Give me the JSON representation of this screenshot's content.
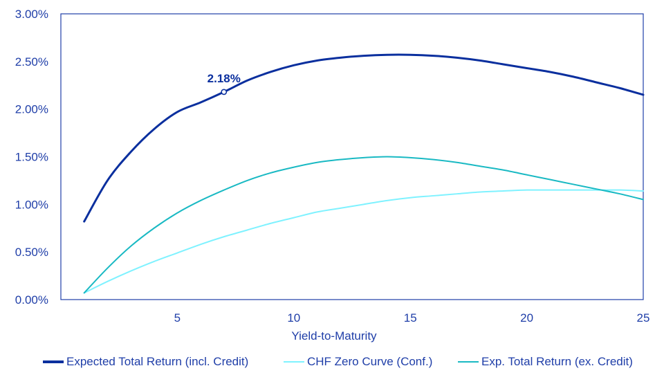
{
  "colors": {
    "axis_text": "#1f3ea8",
    "frame": "#1f3ea8",
    "expected_total": "#0a2f9e",
    "chf_zero": "#7ff2ff",
    "exp_ex_credit": "#19b9c3",
    "annotation": "#0a2f9e"
  },
  "chart_data": {
    "type": "line",
    "title": "",
    "xlabel": "Yield-to-Maturity",
    "ylabel": "",
    "xlim": [
      0,
      25
    ],
    "ylim": [
      0,
      3.0
    ],
    "x_ticks": [
      5,
      10,
      15,
      20,
      25
    ],
    "x_tick_labels": [
      "5",
      "10",
      "15",
      "20",
      "25"
    ],
    "y_ticks": [
      0,
      0.5,
      1.0,
      1.5,
      2.0,
      2.5,
      3.0
    ],
    "y_tick_labels": [
      "0.00%",
      "0.50%",
      "1.00%",
      "1.50%",
      "2.00%",
      "2.50%",
      "3.00%"
    ],
    "grid": false,
    "legend_position": "bottom",
    "series": [
      {
        "name": "Expected Total Return (incl. Credit)",
        "color_key": "expected_total",
        "width": 3,
        "x": [
          1,
          2,
          3,
          4,
          5,
          6,
          7,
          8,
          9,
          10,
          11,
          12,
          13,
          14,
          15,
          16,
          17,
          18,
          19,
          20,
          21,
          22,
          23,
          24,
          25
        ],
        "values": [
          0.82,
          1.25,
          1.55,
          1.79,
          1.97,
          2.07,
          2.18,
          2.3,
          2.39,
          2.46,
          2.51,
          2.54,
          2.56,
          2.57,
          2.57,
          2.56,
          2.54,
          2.51,
          2.47,
          2.43,
          2.39,
          2.34,
          2.28,
          2.22,
          2.15
        ]
      },
      {
        "name": "CHF Zero Curve (Conf.)",
        "color_key": "chf_zero",
        "width": 2,
        "x": [
          1,
          2,
          3,
          4,
          5,
          6,
          7,
          8,
          9,
          10,
          11,
          12,
          13,
          14,
          15,
          16,
          17,
          18,
          19,
          20,
          21,
          22,
          23,
          24,
          25
        ],
        "values": [
          0.07,
          0.19,
          0.3,
          0.4,
          0.49,
          0.58,
          0.66,
          0.73,
          0.8,
          0.86,
          0.92,
          0.96,
          1.0,
          1.04,
          1.07,
          1.09,
          1.11,
          1.13,
          1.14,
          1.15,
          1.15,
          1.15,
          1.15,
          1.15,
          1.14
        ]
      },
      {
        "name": "Exp. Total Return (ex. Credit)",
        "color_key": "exp_ex_credit",
        "width": 2,
        "x": [
          1,
          2,
          3,
          4,
          5,
          6,
          7,
          8,
          9,
          10,
          11,
          12,
          13,
          14,
          15,
          16,
          17,
          18,
          19,
          20,
          21,
          22,
          23,
          24,
          25
        ],
        "values": [
          0.07,
          0.33,
          0.56,
          0.75,
          0.91,
          1.04,
          1.15,
          1.25,
          1.33,
          1.39,
          1.44,
          1.47,
          1.49,
          1.5,
          1.49,
          1.47,
          1.44,
          1.4,
          1.36,
          1.31,
          1.26,
          1.21,
          1.16,
          1.11,
          1.05
        ]
      }
    ],
    "annotations": [
      {
        "series_index": 0,
        "x": 7,
        "y": 2.18,
        "label": "2.18%"
      }
    ]
  }
}
